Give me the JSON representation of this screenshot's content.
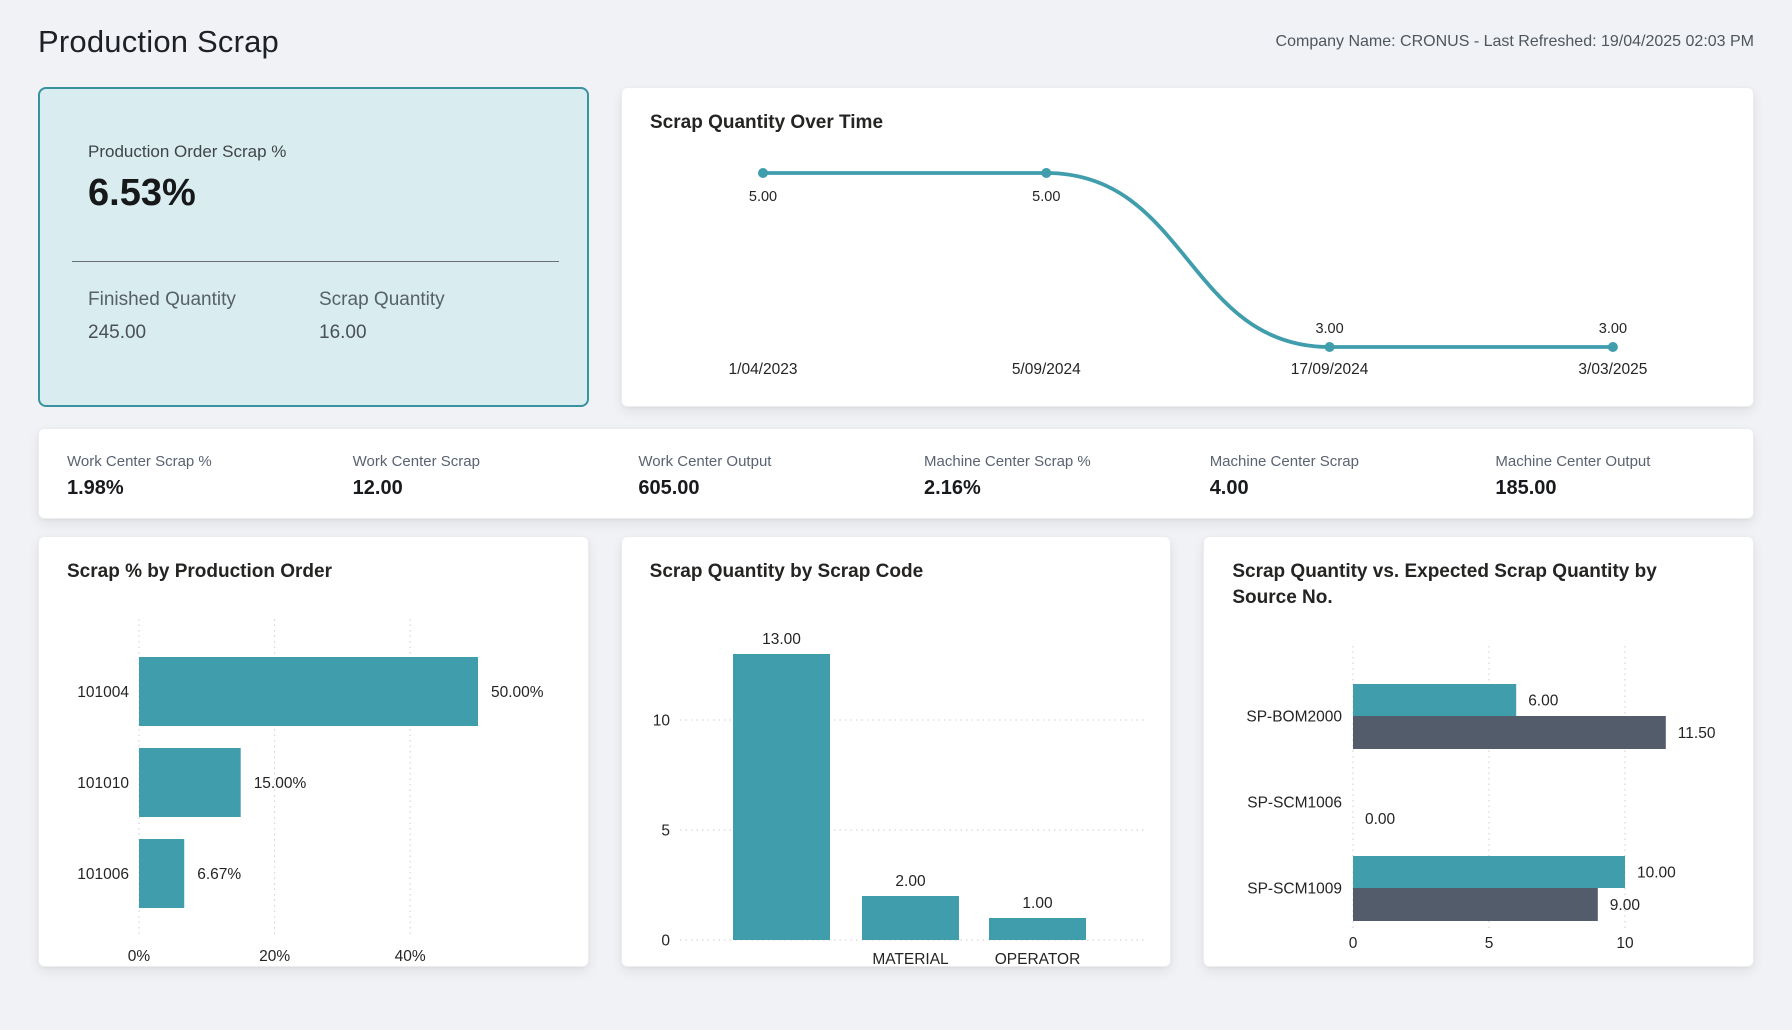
{
  "header": {
    "title": "Production Scrap",
    "company_info": "Company Name: CRONUS - Last Refreshed: 19/04/2025 02:03 PM"
  },
  "kpi_card": {
    "label": "Production Order Scrap %",
    "value": "6.53%",
    "details": [
      {
        "label": "Finished Quantity",
        "value": "245.00"
      },
      {
        "label": "Scrap Quantity",
        "value": "16.00"
      }
    ]
  },
  "kpi_strip": [
    {
      "label": "Work Center Scrap %",
      "value": "1.98%"
    },
    {
      "label": "Work Center Scrap",
      "value": "12.00"
    },
    {
      "label": "Work Center Output",
      "value": "605.00"
    },
    {
      "label": "Machine Center Scrap %",
      "value": "2.16%"
    },
    {
      "label": "Machine Center Scrap",
      "value": "4.00"
    },
    {
      "label": "Machine Center Output",
      "value": "185.00"
    }
  ],
  "colors": {
    "teal": "#3f9dac",
    "dark_slate": "#535c6b",
    "kpi_bg": "#d9edf0",
    "kpi_border": "#38939f",
    "chart_text": "#252423",
    "gridline": "#cfcfcf"
  },
  "chart_data": [
    {
      "id": "scrap_over_time",
      "type": "line",
      "title": "Scrap Quantity Over Time",
      "x": [
        "1/04/2023",
        "5/09/2024",
        "17/09/2024",
        "3/03/2025"
      ],
      "values": [
        5,
        5,
        3,
        3
      ],
      "data_labels": [
        "5.00",
        "5.00",
        "3.00",
        "3.00"
      ],
      "grid": "off",
      "legend": "none"
    },
    {
      "id": "scrap_by_production_order",
      "type": "bar",
      "orientation": "horizontal",
      "title": "Scrap % by Production Order",
      "categories": [
        "101004",
        "101010",
        "101006"
      ],
      "values": [
        50.0,
        15.0,
        6.67
      ],
      "data_labels": [
        "50.00%",
        "15.00%",
        "6.67%"
      ],
      "x_ticks": [
        "0%",
        "20%",
        "40%"
      ],
      "x_tick_values": [
        0,
        20,
        40
      ],
      "xlim": [
        0,
        58
      ],
      "grid": "dotted-vertical",
      "legend": "none"
    },
    {
      "id": "scrap_by_scrap_code",
      "type": "bar",
      "orientation": "vertical",
      "title": "Scrap Quantity by Scrap Code",
      "categories": [
        "",
        "MATERIAL",
        "OPERATOR"
      ],
      "values": [
        13,
        2,
        1
      ],
      "data_labels": [
        "13.00",
        "2.00",
        "1.00"
      ],
      "y_ticks": [
        0,
        5,
        10
      ],
      "ylim": [
        0,
        14
      ],
      "grid": "dotted-horizontal",
      "legend": "none"
    },
    {
      "id": "scrap_vs_expected_by_source",
      "type": "bar",
      "orientation": "horizontal-grouped",
      "title": "Scrap Quantity vs. Expected Scrap Quantity by Source No.",
      "categories": [
        "SP-BOM2000",
        "SP-SCM1006",
        "SP-SCM1009"
      ],
      "series": [
        {
          "name": "Scrap Quantity",
          "color_key": "teal",
          "values": [
            6.0,
            0.0,
            10.0
          ],
          "labels": [
            "6.00",
            "0.00",
            "10.00"
          ]
        },
        {
          "name": "Expected Scrap Quantity",
          "color_key": "dark_slate",
          "values": [
            11.5,
            null,
            9.0
          ],
          "labels": [
            "11.50",
            null,
            "9.00"
          ]
        }
      ],
      "x_ticks": [
        0,
        5,
        10
      ],
      "xlim": [
        0,
        13
      ],
      "grid": "dotted-vertical",
      "legend": "none"
    }
  ]
}
